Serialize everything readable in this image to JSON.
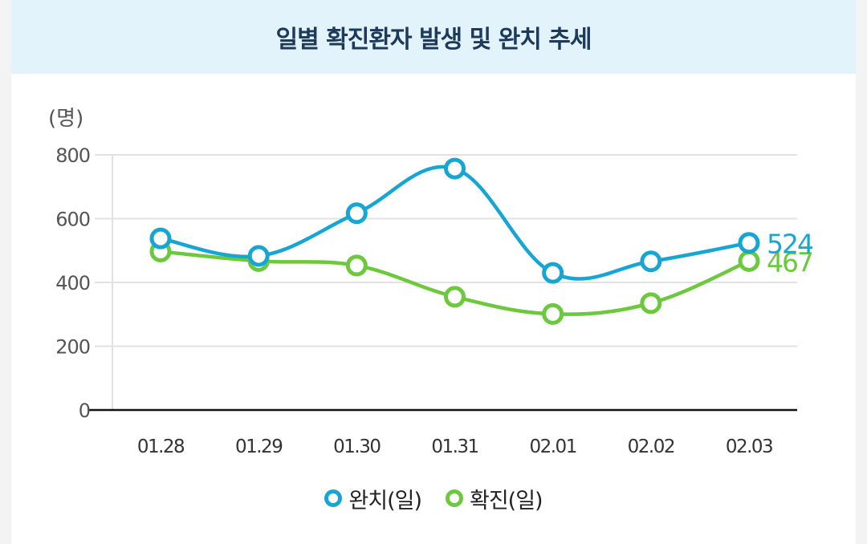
{
  "title": "일별 확진환자 발생 및 완치 추세",
  "colors": {
    "cured": "#17a6d4",
    "confirmed": "#6cc83c",
    "header_bg": "#e3f3fb",
    "title": "#1d3a5c"
  },
  "chart_data": {
    "type": "line",
    "ylabel": "(명)",
    "ylim": [
      0,
      800
    ],
    "yticks": [
      "800",
      "600",
      "400",
      "200",
      "0"
    ],
    "categories": [
      "01.28",
      "01.29",
      "01.30",
      "01.31",
      "02.01",
      "02.02",
      "02.03"
    ],
    "series": [
      {
        "name": "완치(일)",
        "key": "cured",
        "values": [
          538,
          483,
          617,
          757,
          430,
          466,
          524
        ],
        "end_label": "524"
      },
      {
        "name": "확진(일)",
        "key": "confirmed",
        "values": [
          497,
          467,
          453,
          355,
          301,
          335,
          467
        ],
        "end_label": "467"
      }
    ],
    "grid": true,
    "legend": "bottom-center"
  }
}
